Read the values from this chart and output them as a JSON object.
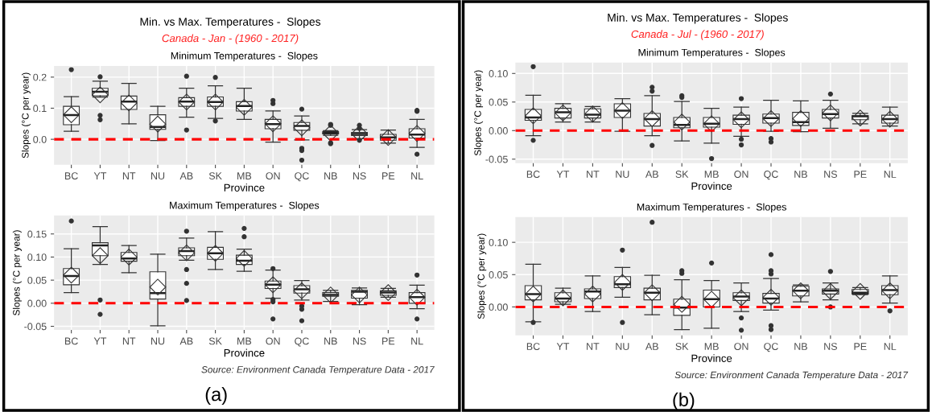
{
  "chart_data": [
    {
      "type": "box",
      "title": "Minimum Temperatures -  Slopes",
      "annotations": [
        "Min. vs Max. Temperatures -  Slopes",
        "Canada - Jan - (1960 - 2017)"
      ],
      "xlabel": "Province",
      "ylabel": "Slopes (°C per year)",
      "categories": [
        "BC",
        "YT",
        "NT",
        "NU",
        "AB",
        "SK",
        "MB",
        "ON",
        "QC",
        "NB",
        "NS",
        "PE",
        "NL"
      ],
      "ylim": [
        -0.082,
        0.236
      ],
      "yticks": [
        {
          "value": 0,
          "label": "0.0"
        },
        {
          "value": 0.1,
          "label": "0.1"
        },
        {
          "value": 0.2,
          "label": "0.2"
        }
      ],
      "grid": true,
      "ref_lines": [
        {
          "axis": "y",
          "value": 0,
          "label": null,
          "color": "#ff0000",
          "line_style": "dashed"
        }
      ],
      "boxes": [
        {
          "low": 0.026,
          "q1": 0.047,
          "median": 0.078,
          "q3": 0.106,
          "high": 0.137,
          "mean": 0.079,
          "outliers": [
            0.224
          ]
        },
        {
          "low": 0.136,
          "q1": 0.14,
          "median": 0.153,
          "q3": 0.164,
          "high": 0.187,
          "mean": 0.143,
          "outliers": [
            0.201,
            0.077,
            0.063
          ]
        },
        {
          "low": 0.05,
          "q1": 0.096,
          "median": 0.121,
          "q3": 0.139,
          "high": 0.18,
          "mean": 0.117
        },
        {
          "low": -0.004,
          "q1": 0.032,
          "median": 0.04,
          "q3": 0.079,
          "high": 0.106,
          "mean": 0.049
        },
        {
          "low": 0.071,
          "q1": 0.106,
          "median": 0.121,
          "q3": 0.134,
          "high": 0.164,
          "mean": 0.12,
          "outliers": [
            0.203,
            0.03
          ]
        },
        {
          "low": 0.067,
          "q1": 0.106,
          "median": 0.12,
          "q3": 0.136,
          "high": 0.172,
          "mean": 0.12,
          "outliers": [
            0.199,
            0.059
          ]
        },
        {
          "low": 0.064,
          "q1": 0.091,
          "median": 0.107,
          "q3": 0.121,
          "high": 0.164,
          "mean": 0.103
        },
        {
          "low": -0.009,
          "q1": 0.034,
          "median": 0.049,
          "q3": 0.064,
          "high": 0.091,
          "mean": 0.05,
          "outliers": [
            0.125,
            0.115
          ]
        },
        {
          "low": -0.002,
          "q1": 0.029,
          "median": 0.043,
          "q3": 0.054,
          "high": 0.075,
          "mean": 0.037,
          "outliers": [
            0.097,
            -0.029,
            -0.036,
            -0.067
          ]
        },
        {
          "low": 0.013,
          "q1": 0.017,
          "median": 0.021,
          "q3": 0.025,
          "high": 0.028,
          "mean": 0.02,
          "outliers": [
            0.048,
            0.045,
            -0.011,
            -0.014
          ]
        },
        {
          "low": 0.002,
          "q1": 0.012,
          "median": 0.017,
          "q3": 0.022,
          "high": 0.031,
          "mean": 0.018,
          "outliers": [
            0.045,
            0.035,
            -0.003
          ]
        },
        {
          "low": -0.012,
          "q1": -0.003,
          "median": 0.006,
          "q3": 0.016,
          "high": 0.03,
          "mean": 0.006
        },
        {
          "low": -0.026,
          "q1": 0.004,
          "median": 0.015,
          "q3": 0.034,
          "high": 0.064,
          "mean": 0.019,
          "outliers": [
            0.093,
            0.09,
            -0.048
          ]
        }
      ]
    },
    {
      "type": "box",
      "title": "Maximum Temperatures -  Slopes",
      "annotations": [
        "Source: Environment Canada Temperature Data - 2017",
        "(a)"
      ],
      "xlabel": "Province",
      "ylabel": "Slopes (°C per year)",
      "categories": [
        "BC",
        "YT",
        "NT",
        "NU",
        "AB",
        "SK",
        "MB",
        "ON",
        "QC",
        "NB",
        "NS",
        "PE",
        "NL"
      ],
      "ylim": [
        -0.058,
        0.19
      ],
      "yticks": [
        {
          "value": -0.05,
          "label": "-0.05"
        },
        {
          "value": 0,
          "label": "0.00"
        },
        {
          "value": 0.05,
          "label": "0.05"
        },
        {
          "value": 0.1,
          "label": "0.10"
        },
        {
          "value": 0.15,
          "label": "0.15"
        }
      ],
      "grid": true,
      "ref_lines": [
        {
          "axis": "y",
          "value": 0,
          "label": null,
          "color": "#ff0000",
          "line_style": "dashed"
        }
      ],
      "boxes": [
        {
          "low": 0.023,
          "q1": 0.04,
          "median": 0.059,
          "q3": 0.075,
          "high": 0.118,
          "mean": 0.061,
          "outliers": [
            0.178
          ]
        },
        {
          "low": 0.084,
          "q1": 0.103,
          "median": 0.125,
          "q3": 0.131,
          "high": 0.166,
          "mean": 0.103,
          "outliers": [
            0.007,
            -0.024
          ]
        },
        {
          "low": 0.066,
          "q1": 0.091,
          "median": 0.097,
          "q3": 0.11,
          "high": 0.125,
          "mean": 0.1
        },
        {
          "low": -0.049,
          "q1": 0.009,
          "median": 0.022,
          "q3": 0.068,
          "high": 0.106,
          "mean": 0.035
        },
        {
          "low": 0.093,
          "q1": 0.103,
          "median": 0.113,
          "q3": 0.12,
          "high": 0.141,
          "mean": 0.109,
          "outliers": [
            0.156,
            0.073,
            0.043,
            0.006
          ]
        },
        {
          "low": 0.073,
          "q1": 0.095,
          "median": 0.108,
          "q3": 0.121,
          "high": 0.155,
          "mean": 0.108
        },
        {
          "low": 0.069,
          "q1": 0.084,
          "median": 0.092,
          "q3": 0.104,
          "high": 0.117,
          "mean": 0.097,
          "outliers": [
            0.162,
            0.144
          ]
        },
        {
          "low": 0.011,
          "q1": 0.032,
          "median": 0.04,
          "q3": 0.048,
          "high": 0.072,
          "mean": 0.04,
          "outliers": [
            0.075,
            0.008,
            0.003,
            -0.034
          ]
        },
        {
          "low": 0.007,
          "q1": 0.022,
          "median": 0.03,
          "q3": 0.038,
          "high": 0.049,
          "mean": 0.027,
          "outliers": [
            -0.006,
            -0.013,
            -0.038
          ]
        },
        {
          "low": 0.004,
          "q1": 0.015,
          "median": 0.018,
          "q3": 0.023,
          "high": 0.028,
          "mean": 0.018
        },
        {
          "low": -0.003,
          "q1": 0.011,
          "median": 0.025,
          "q3": 0.028,
          "high": 0.033,
          "mean": 0.018
        },
        {
          "low": 0.013,
          "q1": 0.017,
          "median": 0.023,
          "q3": 0.027,
          "high": 0.032,
          "mean": 0.023
        },
        {
          "low": -0.012,
          "q1": 0.0,
          "median": 0.013,
          "q3": 0.023,
          "high": 0.039,
          "mean": 0.013,
          "outliers": [
            0.061,
            -0.034
          ]
        }
      ]
    },
    {
      "type": "box",
      "title": "Minimum Temperatures -  Slopes",
      "annotations": [
        "Min. vs Max. Temperatures -  Slopes",
        "Canada - Jul - (1960 - 2017)"
      ],
      "xlabel": "Province",
      "ylabel": "Slopes (°C per year)",
      "categories": [
        "BC",
        "YT",
        "NT",
        "NU",
        "AB",
        "SK",
        "MB",
        "ON",
        "QC",
        "NB",
        "NS",
        "PE",
        "NL"
      ],
      "ylim": [
        -0.057,
        0.119
      ],
      "yticks": [
        {
          "value": -0.05,
          "label": "-0.05"
        },
        {
          "value": 0,
          "label": "0.00"
        },
        {
          "value": 0.05,
          "label": "0.05"
        },
        {
          "value": 0.1,
          "label": "0.10"
        }
      ],
      "grid": true,
      "ref_lines": [
        {
          "axis": "y",
          "value": 0,
          "label": null,
          "color": "#ff0000",
          "line_style": "dashed"
        }
      ],
      "boxes": [
        {
          "low": -0.009,
          "q1": 0.018,
          "median": 0.023,
          "q3": 0.037,
          "high": 0.062,
          "mean": 0.026,
          "outliers": [
            0.112,
            -0.017
          ]
        },
        {
          "low": 0.015,
          "q1": 0.022,
          "median": 0.032,
          "q3": 0.039,
          "high": 0.047,
          "mean": 0.031
        },
        {
          "low": 0.015,
          "q1": 0.022,
          "median": 0.028,
          "q3": 0.038,
          "high": 0.042,
          "mean": 0.029
        },
        {
          "low": -0.001,
          "q1": 0.023,
          "median": 0.035,
          "q3": 0.047,
          "high": 0.056,
          "mean": 0.035
        },
        {
          "low": -0.009,
          "q1": 0.008,
          "median": 0.02,
          "q3": 0.03,
          "high": 0.061,
          "mean": 0.021,
          "outliers": [
            0.076,
            0.069,
            -0.026
          ]
        },
        {
          "low": -0.018,
          "q1": 0.005,
          "median": 0.01,
          "q3": 0.023,
          "high": 0.051,
          "mean": 0.015,
          "outliers": [
            0.061,
            0.058
          ]
        },
        {
          "low": -0.022,
          "q1": 0.006,
          "median": 0.012,
          "q3": 0.023,
          "high": 0.039,
          "mean": 0.012,
          "outliers": [
            -0.049
          ]
        },
        {
          "low": -0.01,
          "q1": 0.011,
          "median": 0.02,
          "q3": 0.027,
          "high": 0.041,
          "mean": 0.019,
          "outliers": [
            0.056,
            -0.015,
            -0.025
          ]
        },
        {
          "low": -0.001,
          "q1": 0.013,
          "median": 0.022,
          "q3": 0.029,
          "high": 0.053,
          "mean": 0.021,
          "outliers": [
            -0.014,
            -0.02
          ]
        },
        {
          "low": -0.002,
          "q1": 0.009,
          "median": 0.015,
          "q3": 0.032,
          "high": 0.052,
          "mean": 0.021
        },
        {
          "low": 0.004,
          "q1": 0.022,
          "median": 0.029,
          "q3": 0.037,
          "high": 0.053,
          "mean": 0.031,
          "outliers": [
            0.064
          ]
        },
        {
          "low": 0.012,
          "q1": 0.019,
          "median": 0.025,
          "q3": 0.026,
          "high": 0.03,
          "mean": 0.022
        },
        {
          "low": 0.008,
          "q1": 0.013,
          "median": 0.02,
          "q3": 0.027,
          "high": 0.041,
          "mean": 0.02
        }
      ]
    },
    {
      "type": "box",
      "title": "Maximum Temperatures -  Slopes",
      "annotations": [
        "Source: Environment Canada Temperature Data - 2017",
        "(b)"
      ],
      "xlabel": "Province",
      "ylabel": "Slopes (°C per year)",
      "categories": [
        "BC",
        "YT",
        "NT",
        "NU",
        "AB",
        "SK",
        "MB",
        "ON",
        "QC",
        "NB",
        "NS",
        "PE",
        "NL"
      ],
      "ylim": [
        -0.044,
        0.139
      ],
      "yticks": [
        {
          "value": 0,
          "label": "0.00"
        },
        {
          "value": 0.05,
          "label": "0.05"
        },
        {
          "value": 0.1,
          "label": "0.10"
        }
      ],
      "grid": true,
      "ref_lines": [
        {
          "axis": "y",
          "value": 0,
          "label": null,
          "color": "#ff0000",
          "line_style": "dashed"
        }
      ],
      "boxes": [
        {
          "low": -0.023,
          "q1": 0.011,
          "median": 0.02,
          "q3": 0.033,
          "high": 0.066,
          "mean": 0.02,
          "outliers": [
            -0.024
          ]
        },
        {
          "low": 0.004,
          "q1": 0.008,
          "median": 0.013,
          "q3": 0.022,
          "high": 0.029,
          "mean": 0.014
        },
        {
          "low": -0.007,
          "q1": 0.013,
          "median": 0.024,
          "q3": 0.028,
          "high": 0.048,
          "mean": 0.02
        },
        {
          "low": 0.015,
          "q1": 0.03,
          "median": 0.035,
          "q3": 0.047,
          "high": 0.061,
          "mean": 0.038,
          "outliers": [
            0.088,
            -0.024
          ]
        },
        {
          "low": -0.012,
          "q1": 0.011,
          "median": 0.022,
          "q3": 0.029,
          "high": 0.049,
          "mean": 0.022,
          "outliers": [
            0.131
          ]
        },
        {
          "low": -0.035,
          "q1": -0.013,
          "median": -0.001,
          "q3": 0.012,
          "high": 0.042,
          "mean": 0.004,
          "outliers": [
            0.056,
            0.052
          ]
        },
        {
          "low": -0.033,
          "q1": 0.0,
          "median": 0.012,
          "q3": 0.026,
          "high": 0.041,
          "mean": 0.012,
          "outliers": [
            0.068
          ]
        },
        {
          "low": -0.007,
          "q1": 0.01,
          "median": 0.016,
          "q3": 0.022,
          "high": 0.037,
          "mean": 0.014,
          "outliers": [
            -0.017,
            -0.036
          ]
        },
        {
          "low": -0.005,
          "q1": 0.006,
          "median": 0.013,
          "q3": 0.021,
          "high": 0.044,
          "mean": 0.015,
          "outliers": [
            0.081,
            0.056,
            0.051,
            -0.029,
            -0.035
          ]
        },
        {
          "low": 0.008,
          "q1": 0.017,
          "median": 0.025,
          "q3": 0.032,
          "high": 0.034,
          "mean": 0.025
        },
        {
          "low": 0.011,
          "q1": 0.02,
          "median": 0.025,
          "q3": 0.028,
          "high": 0.037,
          "mean": 0.024,
          "outliers": [
            0.055,
            0.0
          ]
        },
        {
          "low": 0.019,
          "q1": 0.02,
          "median": 0.022,
          "q3": 0.027,
          "high": 0.03,
          "mean": 0.024
        },
        {
          "low": 0.006,
          "q1": 0.019,
          "median": 0.026,
          "q3": 0.033,
          "high": 0.048,
          "mean": 0.025,
          "outliers": [
            -0.006
          ]
        }
      ]
    }
  ]
}
